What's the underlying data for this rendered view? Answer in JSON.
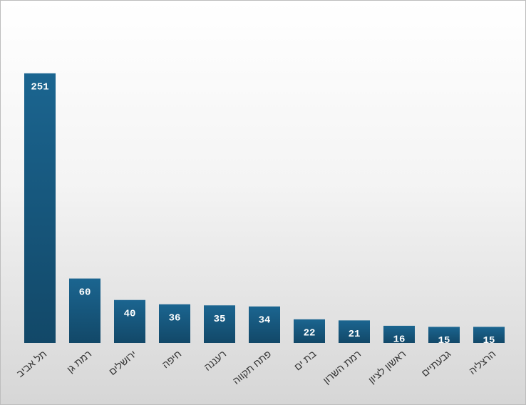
{
  "chart_data": {
    "type": "bar",
    "categories": [
      "תל אביב",
      "רמת גן",
      "ירושלים",
      "חיפה",
      "רעננה",
      "פתח תקווה",
      "בת ים",
      "רמת השרון",
      "ראשון לציון",
      "גבעתיים",
      "הרצליה"
    ],
    "values": [
      251,
      60,
      40,
      36,
      35,
      34,
      22,
      21,
      16,
      15,
      15
    ],
    "color": "#17597e",
    "ylim": [
      0,
      300
    ]
  }
}
